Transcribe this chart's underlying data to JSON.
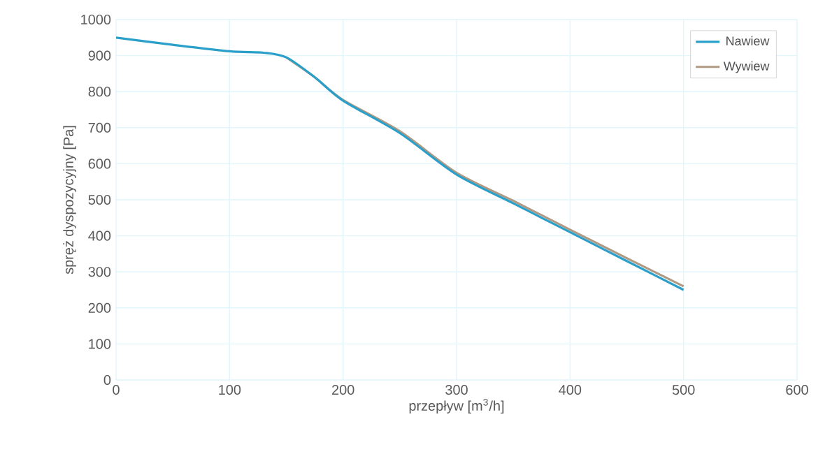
{
  "chart_data": {
    "type": "line",
    "xlabel": "przepływ [m$^{3}$/h]",
    "ylabel": "spręż dyspozycyjny  [Pa]",
    "xlim": [
      0,
      600
    ],
    "xticks": [
      0,
      100,
      200,
      300,
      400,
      500,
      600
    ],
    "ylim": [
      0,
      1000
    ],
    "yticks": [
      0,
      100,
      200,
      300,
      400,
      500,
      600,
      700,
      800,
      900,
      1000
    ],
    "grid": true,
    "legend": "top right",
    "marker": "none",
    "line_style": "solid",
    "series": [
      {
        "name": "Nawiew",
        "color": "#2a9fc9",
        "x": [
          0,
          50,
          100,
          130,
          150,
          175,
          200,
          250,
          300,
          350,
          400,
          450,
          500
        ],
        "values": [
          950,
          930,
          912,
          908,
          895,
          840,
          775,
          685,
          570,
          490,
          410,
          330,
          250
        ]
      },
      {
        "name": "Wywiew",
        "color": "#b09a84",
        "x": [
          150,
          175,
          200,
          250,
          300,
          350,
          400,
          450,
          500
        ],
        "values": [
          895,
          840,
          777,
          690,
          575,
          497,
          417,
          338,
          260
        ]
      }
    ]
  }
}
